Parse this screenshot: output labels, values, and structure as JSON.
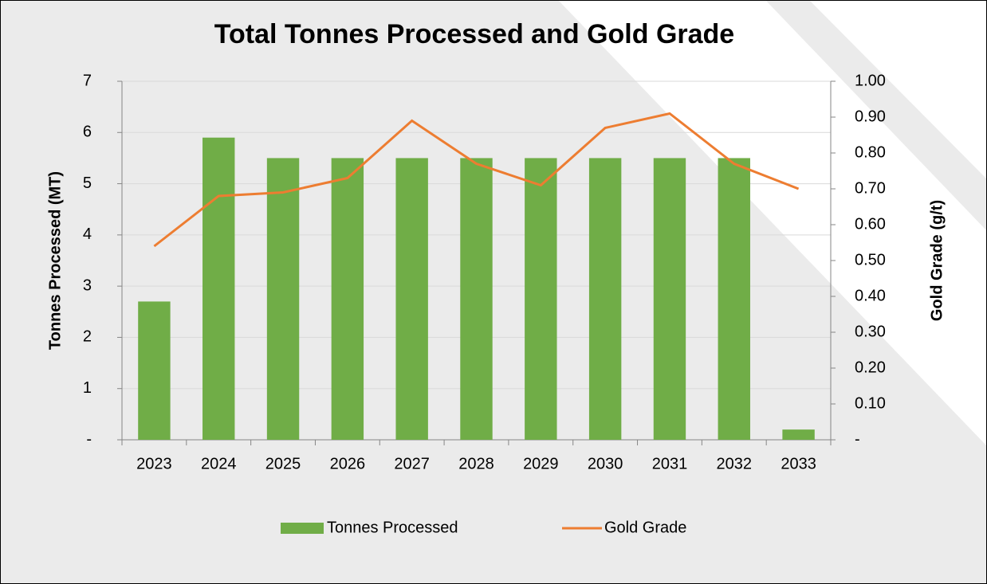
{
  "chart_data": {
    "type": "combo",
    "title": "Total Tonnes Processed and Gold Grade",
    "y_label": "Tonnes Processed (MT)",
    "y2_label": "Gold Grade (g/t)",
    "categories": [
      "2023",
      "2024",
      "2025",
      "2026",
      "2027",
      "2028",
      "2029",
      "2030",
      "2031",
      "2032",
      "2033"
    ],
    "series": [
      {
        "name": "Tonnes Processed",
        "type": "bar",
        "color": "#70ad47",
        "values": [
          2.7,
          5.9,
          5.5,
          5.5,
          5.5,
          5.5,
          5.5,
          5.5,
          5.5,
          5.5,
          0.2
        ]
      },
      {
        "name": "Gold Grade",
        "type": "line",
        "axis": "y2",
        "color": "#ed7d31",
        "values": [
          0.54,
          0.68,
          0.69,
          0.73,
          0.89,
          0.77,
          0.71,
          0.87,
          0.91,
          0.77,
          0.7
        ]
      }
    ],
    "ylim": [
      0,
      7
    ],
    "yticks": [
      {
        "value": 0,
        "label": "-"
      },
      1,
      2,
      3,
      4,
      5,
      6,
      7
    ],
    "y2lim": [
      0,
      1
    ],
    "y2ticks": [
      {
        "value": 0,
        "label": "-"
      },
      {
        "value": 0.1,
        "label": "0.10"
      },
      {
        "value": 0.2,
        "label": "0.20"
      },
      {
        "value": 0.3,
        "label": "0.30"
      },
      {
        "value": 0.4,
        "label": "0.40"
      },
      {
        "value": 0.5,
        "label": "0.50"
      },
      {
        "value": 0.6,
        "label": "0.60"
      },
      {
        "value": 0.7,
        "label": "0.70"
      },
      {
        "value": 0.8,
        "label": "0.80"
      },
      {
        "value": 0.9,
        "label": "0.90"
      },
      {
        "value": 1,
        "label": "1.00"
      }
    ],
    "grid": true,
    "legend": "bottom"
  }
}
